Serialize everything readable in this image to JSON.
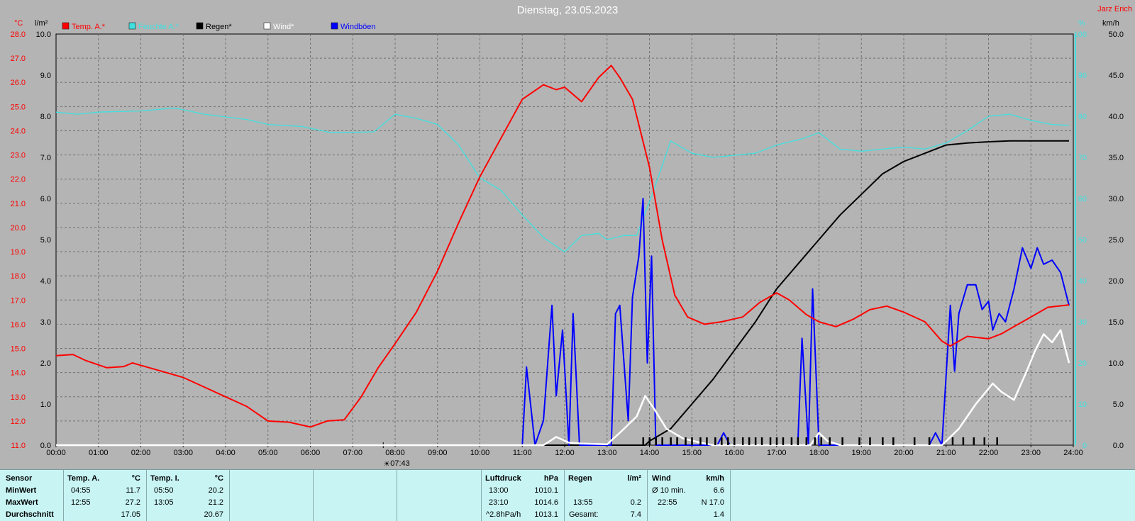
{
  "title": "Dienstag, 23.05.2023",
  "author": "Jarz Erich",
  "axes": {
    "left_unit": "°C",
    "rain_unit": "l/m²",
    "hum_unit": "%",
    "wind_unit": "km/h",
    "temp_ticks": [
      "28.0",
      "27.0",
      "26.0",
      "25.0",
      "24.0",
      "23.0",
      "22.0",
      "21.0",
      "20.0",
      "19.0",
      "18.0",
      "17.0",
      "16.0",
      "15.0",
      "14.0",
      "13.0",
      "12.0",
      "11.0"
    ],
    "rain_ticks": [
      "10.0",
      "9.0",
      "8.0",
      "7.0",
      "6.0",
      "5.0",
      "4.0",
      "3.0",
      "2.0",
      "1.0",
      "0.0"
    ],
    "hum_ticks": [
      "100",
      "90",
      "80",
      "70",
      "60",
      "50",
      "40",
      "30",
      "20",
      "10",
      "0"
    ],
    "wind_ticks": [
      "50.0",
      "45.0",
      "40.0",
      "35.0",
      "30.0",
      "25.0",
      "20.0",
      "15.0",
      "10.0",
      "5.0",
      "0.0"
    ],
    "time_ticks": [
      "00:00",
      "01:00",
      "02:00",
      "03:00",
      "04:00",
      "05:00",
      "06:00",
      "07:00",
      "08:00",
      "09:00",
      "10:00",
      "11:00",
      "12:00",
      "13:00",
      "14:00",
      "15:00",
      "16:00",
      "17:00",
      "18:00",
      "19:00",
      "20:00",
      "21:00",
      "22:00",
      "23:00",
      "24:00"
    ],
    "sunrise": "07:43"
  },
  "legend": [
    {
      "label": "Temp. A.*",
      "color": "#ff0000"
    },
    {
      "label": "Feuchte A.*",
      "color": "#40e0e0"
    },
    {
      "label": "Regen*",
      "color": "#000000"
    },
    {
      "label": "Wind*",
      "color": "#ffffff"
    },
    {
      "label": "Windböen",
      "color": "#0000ff"
    }
  ],
  "chart_data": {
    "type": "line",
    "x_unit": "hours",
    "xlim": [
      0,
      24
    ],
    "series": [
      {
        "name": "Temp. A.*",
        "axis": "°C",
        "ylim": [
          11,
          28
        ],
        "points": [
          [
            0,
            14.7
          ],
          [
            0.4,
            14.75
          ],
          [
            0.7,
            14.5
          ],
          [
            1.2,
            14.2
          ],
          [
            1.6,
            14.25
          ],
          [
            1.8,
            14.4
          ],
          [
            2.2,
            14.2
          ],
          [
            2.6,
            14.0
          ],
          [
            3.0,
            13.8
          ],
          [
            3.5,
            13.4
          ],
          [
            4.0,
            13.0
          ],
          [
            4.5,
            12.6
          ],
          [
            5.0,
            12.0
          ],
          [
            5.5,
            11.95
          ],
          [
            6.0,
            11.75
          ],
          [
            6.4,
            12.0
          ],
          [
            6.8,
            12.05
          ],
          [
            7.2,
            13.0
          ],
          [
            7.6,
            14.2
          ],
          [
            8.0,
            15.2
          ],
          [
            8.5,
            16.5
          ],
          [
            9.0,
            18.2
          ],
          [
            9.5,
            20.2
          ],
          [
            10.0,
            22.1
          ],
          [
            10.5,
            23.7
          ],
          [
            11.0,
            25.3
          ],
          [
            11.5,
            25.9
          ],
          [
            11.8,
            25.7
          ],
          [
            12.0,
            25.8
          ],
          [
            12.4,
            25.2
          ],
          [
            12.8,
            26.2
          ],
          [
            13.1,
            26.7
          ],
          [
            13.3,
            26.2
          ],
          [
            13.6,
            25.3
          ],
          [
            14.0,
            22.5
          ],
          [
            14.3,
            19.5
          ],
          [
            14.6,
            17.2
          ],
          [
            14.9,
            16.3
          ],
          [
            15.3,
            16.0
          ],
          [
            15.7,
            16.1
          ],
          [
            16.2,
            16.3
          ],
          [
            16.6,
            16.9
          ],
          [
            17.0,
            17.3
          ],
          [
            17.3,
            17.0
          ],
          [
            17.7,
            16.4
          ],
          [
            18.0,
            16.1
          ],
          [
            18.4,
            15.9
          ],
          [
            18.8,
            16.2
          ],
          [
            19.2,
            16.6
          ],
          [
            19.6,
            16.75
          ],
          [
            20.0,
            16.5
          ],
          [
            20.5,
            16.1
          ],
          [
            20.9,
            15.3
          ],
          [
            21.1,
            15.1
          ],
          [
            21.5,
            15.5
          ],
          [
            22.0,
            15.4
          ],
          [
            22.3,
            15.6
          ],
          [
            22.6,
            15.9
          ],
          [
            23.0,
            16.3
          ],
          [
            23.4,
            16.7
          ],
          [
            23.9,
            16.8
          ]
        ]
      },
      {
        "name": "Feuchte A.*",
        "axis": "%",
        "ylim": [
          0,
          100
        ],
        "points": [
          [
            0,
            81
          ],
          [
            0.5,
            80.5
          ],
          [
            1.0,
            81
          ],
          [
            2.0,
            81.3
          ],
          [
            2.8,
            82
          ],
          [
            3.5,
            80.5
          ],
          [
            4.5,
            79.2
          ],
          [
            5.0,
            78
          ],
          [
            5.8,
            77.5
          ],
          [
            6.5,
            76
          ],
          [
            7.5,
            76.2
          ],
          [
            8.0,
            80.5
          ],
          [
            8.5,
            79.5
          ],
          [
            9.0,
            78
          ],
          [
            9.5,
            73
          ],
          [
            10.0,
            65
          ],
          [
            10.5,
            62
          ],
          [
            11.0,
            56
          ],
          [
            11.5,
            50.5
          ],
          [
            12.0,
            47
          ],
          [
            12.4,
            51
          ],
          [
            12.8,
            51.5
          ],
          [
            13.0,
            50
          ],
          [
            13.4,
            51
          ],
          [
            13.7,
            51
          ],
          [
            14.1,
            62
          ],
          [
            14.5,
            74
          ],
          [
            15.0,
            71
          ],
          [
            15.5,
            70
          ],
          [
            16.0,
            70.5
          ],
          [
            16.5,
            71
          ],
          [
            17.0,
            73
          ],
          [
            17.6,
            74.5
          ],
          [
            18.0,
            76
          ],
          [
            18.5,
            72
          ],
          [
            19.0,
            71.5
          ],
          [
            19.5,
            72
          ],
          [
            20.0,
            72.5
          ],
          [
            20.5,
            72
          ],
          [
            21.0,
            73.5
          ],
          [
            21.5,
            76.5
          ],
          [
            22.0,
            80
          ],
          [
            22.5,
            80.5
          ],
          [
            23.0,
            79
          ],
          [
            23.5,
            78
          ],
          [
            23.9,
            77.8
          ]
        ]
      },
      {
        "name": "Regen*",
        "axis": "l/m²",
        "ylim": [
          0,
          10
        ],
        "points": [
          [
            0,
            0
          ],
          [
            13.9,
            0
          ],
          [
            14.0,
            0.1
          ],
          [
            14.5,
            0.4
          ],
          [
            15.0,
            1.0
          ],
          [
            15.5,
            1.6
          ],
          [
            16.0,
            2.3
          ],
          [
            16.5,
            3.0
          ],
          [
            17.0,
            3.8
          ],
          [
            17.5,
            4.4
          ],
          [
            18.0,
            5.0
          ],
          [
            18.5,
            5.6
          ],
          [
            19.0,
            6.1
          ],
          [
            19.5,
            6.6
          ],
          [
            20.0,
            6.9
          ],
          [
            20.5,
            7.1
          ],
          [
            21.0,
            7.3
          ],
          [
            21.5,
            7.35
          ],
          [
            22.0,
            7.38
          ],
          [
            22.5,
            7.4
          ],
          [
            23.9,
            7.4
          ]
        ]
      },
      {
        "name": "Wind*",
        "axis": "km/h",
        "ylim": [
          0,
          50
        ],
        "points": [
          [
            0,
            0
          ],
          [
            11.5,
            0
          ],
          [
            11.8,
            1.0
          ],
          [
            12.1,
            0.3
          ],
          [
            12.4,
            0.2
          ],
          [
            13.0,
            0.1
          ],
          [
            13.3,
            1.5
          ],
          [
            13.7,
            3.5
          ],
          [
            13.9,
            6.0
          ],
          [
            14.1,
            4.5
          ],
          [
            14.4,
            2.0
          ],
          [
            14.8,
            0.8
          ],
          [
            15.2,
            0.3
          ],
          [
            15.5,
            0
          ],
          [
            17.8,
            0
          ],
          [
            18.0,
            1.5
          ],
          [
            18.2,
            0.5
          ],
          [
            18.5,
            0
          ],
          [
            20.9,
            0
          ],
          [
            21.3,
            2.0
          ],
          [
            21.7,
            5.0
          ],
          [
            22.1,
            7.5
          ],
          [
            22.3,
            6.5
          ],
          [
            22.6,
            5.5
          ],
          [
            22.9,
            9.0
          ],
          [
            23.1,
            11.5
          ],
          [
            23.3,
            13.5
          ],
          [
            23.5,
            12.5
          ],
          [
            23.7,
            14.0
          ],
          [
            23.9,
            10.0
          ]
        ]
      },
      {
        "name": "Windböen",
        "axis": "km/h",
        "ylim": [
          0,
          50
        ],
        "points": [
          [
            0,
            0
          ],
          [
            11.0,
            0
          ],
          [
            11.1,
            9.5
          ],
          [
            11.3,
            0
          ],
          [
            11.5,
            3
          ],
          [
            11.7,
            17
          ],
          [
            11.8,
            6
          ],
          [
            11.95,
            14
          ],
          [
            12.1,
            0
          ],
          [
            12.2,
            16
          ],
          [
            12.35,
            0
          ],
          [
            13.1,
            0
          ],
          [
            13.2,
            16
          ],
          [
            13.3,
            17
          ],
          [
            13.5,
            3
          ],
          [
            13.6,
            18
          ],
          [
            13.75,
            23
          ],
          [
            13.85,
            30
          ],
          [
            13.95,
            10
          ],
          [
            14.05,
            23
          ],
          [
            14.15,
            0
          ],
          [
            15.6,
            0
          ],
          [
            15.75,
            1.5
          ],
          [
            15.9,
            0
          ],
          [
            17.5,
            0
          ],
          [
            17.6,
            13
          ],
          [
            17.75,
            0
          ],
          [
            17.85,
            19
          ],
          [
            18.0,
            0
          ],
          [
            20.6,
            0
          ],
          [
            20.75,
            1.5
          ],
          [
            20.9,
            0
          ],
          [
            21.1,
            17
          ],
          [
            21.2,
            9
          ],
          [
            21.3,
            16
          ],
          [
            21.5,
            19.5
          ],
          [
            21.7,
            19.5
          ],
          [
            21.85,
            16.5
          ],
          [
            22.0,
            17.5
          ],
          [
            22.1,
            14
          ],
          [
            22.25,
            16
          ],
          [
            22.4,
            15
          ],
          [
            22.6,
            19
          ],
          [
            22.8,
            24
          ],
          [
            23.0,
            21.5
          ],
          [
            23.15,
            24
          ],
          [
            23.3,
            22
          ],
          [
            23.5,
            22.5
          ],
          [
            23.7,
            21
          ],
          [
            23.9,
            17
          ]
        ]
      }
    ],
    "rain_marks": [
      13.85,
      14.0,
      14.15,
      14.3,
      14.5,
      14.65,
      14.85,
      15.0,
      15.2,
      15.35,
      15.55,
      15.7,
      15.85,
      16.0,
      16.2,
      16.35,
      16.5,
      16.65,
      16.85,
      17.0,
      17.15,
      17.35,
      17.5,
      17.7,
      17.9,
      18.05,
      18.25,
      18.55,
      18.95,
      19.2,
      19.5,
      19.75,
      20.25,
      20.6,
      21.15,
      21.4,
      21.65,
      21.9,
      22.2
    ],
    "sunrise_hour": 7.72
  },
  "table": {
    "col_sensor": {
      "h": "Sensor",
      "r1": "MinWert",
      "r2": "MaxWert",
      "r3": "Durchschnitt"
    },
    "col_tempa": {
      "h": "Temp. A.",
      "u": "°C",
      "t1": "04:55",
      "v1": "11.7",
      "t2": "12:55",
      "v2": "27.2",
      "v3": "17.05"
    },
    "col_tempi": {
      "h": "Temp. I.",
      "u": "°C",
      "t1": "05:50",
      "v1": "20.2",
      "t2": "13:05",
      "v2": "21.2",
      "v3": "20.67"
    },
    "col_press": {
      "h": "Luftdruck",
      "u": "hPa",
      "t1": "13:00",
      "v1": "1010.1",
      "t2": "23:10",
      "v2": "1014.6",
      "t3": "^2.8hPa/h",
      "v3": "1013.1"
    },
    "col_rain": {
      "h": "Regen",
      "u": "l/m²",
      "t2": "13:55",
      "v2": "0.2",
      "t3": "Gesamt:",
      "v3": "7.4"
    },
    "col_wind": {
      "h": "Wind",
      "u": "km/h",
      "t1": "Ø 10 min.",
      "v1": "6.6",
      "t2": "22:55",
      "v2": "N 17.0",
      "v3": "1.4"
    }
  }
}
